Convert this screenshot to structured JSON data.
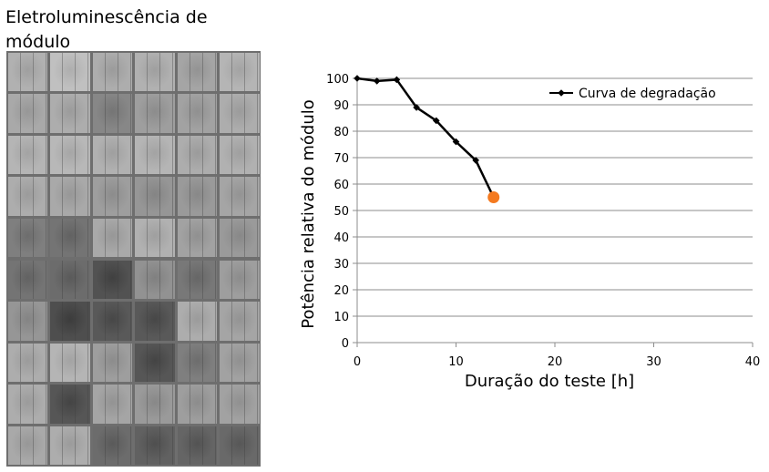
{
  "module_panel": {
    "title": "Eletroluminescência de módulo",
    "cells": [
      [
        0.72,
        0.8,
        0.7,
        0.72,
        0.66,
        0.74
      ],
      [
        0.68,
        0.7,
        0.5,
        0.62,
        0.64,
        0.7
      ],
      [
        0.74,
        0.76,
        0.72,
        0.74,
        0.7,
        0.72
      ],
      [
        0.7,
        0.68,
        0.62,
        0.58,
        0.6,
        0.66
      ],
      [
        0.46,
        0.4,
        0.68,
        0.72,
        0.64,
        0.6
      ],
      [
        0.4,
        0.36,
        0.22,
        0.56,
        0.42,
        0.62
      ],
      [
        0.58,
        0.2,
        0.26,
        0.26,
        0.7,
        0.66
      ],
      [
        0.7,
        0.74,
        0.62,
        0.24,
        0.46,
        0.64
      ],
      [
        0.7,
        0.24,
        0.66,
        0.6,
        0.62,
        0.64
      ],
      [
        0.68,
        0.7,
        0.36,
        0.3,
        0.32,
        0.34
      ]
    ]
  },
  "chart_data": {
    "type": "line",
    "xlabel": "Duração do teste [h]",
    "ylabel": "Potência relativa do módulo",
    "xlim": [
      0,
      40
    ],
    "ylim": [
      0,
      100
    ],
    "xticks": [
      0,
      10,
      20,
      30,
      40
    ],
    "yticks": [
      0,
      10,
      20,
      30,
      40,
      50,
      60,
      70,
      80,
      90,
      100
    ],
    "grid": "horizontal",
    "legend_position": "top-right",
    "series": [
      {
        "name": "Curva de degradação",
        "color": "#000000",
        "marker": "diamond",
        "x": [
          0,
          2,
          4,
          6,
          8,
          10,
          12,
          13.8
        ],
        "y": [
          100,
          99,
          99.5,
          89,
          84,
          76,
          69,
          55
        ]
      }
    ],
    "highlight_point": {
      "x": 13.8,
      "y": 55,
      "color": "#f47a20"
    }
  }
}
